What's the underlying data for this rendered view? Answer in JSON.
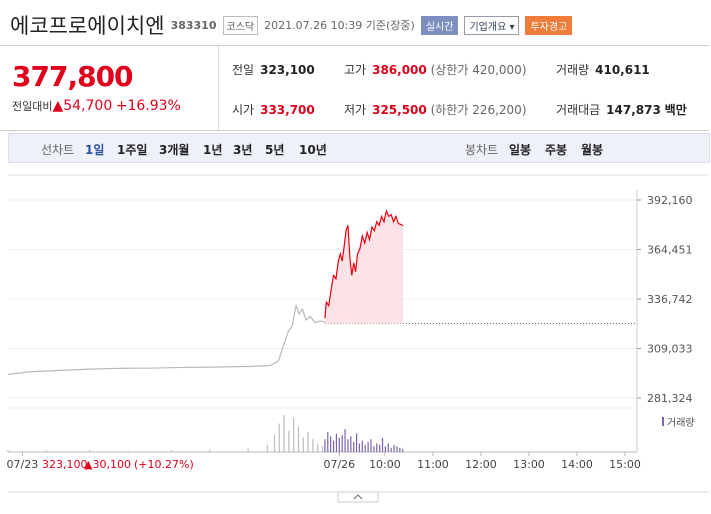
{
  "header": {
    "name": "에코프로에이치엔",
    "code": "383310",
    "market": "코스닥",
    "datetime": "2021.07.26 10:39 기준(장중)",
    "buttons": [
      "실시간",
      "기업개요 ▾",
      "투자경고"
    ]
  },
  "quote": {
    "price": "377,800",
    "change_label": "전일대비",
    "change": "▲54,700",
    "rate": "+16.93%",
    "stats": [
      {
        "label": "전일",
        "value": "323,100"
      },
      {
        "label": "고가",
        "value": "386,000",
        "extra": "(상한가 420,000)"
      },
      {
        "label": "거래량",
        "value": "410,611"
      },
      {
        "label": "시가",
        "value": "333,700"
      },
      {
        "label": "저가",
        "value": "325,500",
        "extra": "(하한가 226,200)"
      },
      {
        "label": "거래대금",
        "value": "147,873",
        "unit": "백만"
      }
    ]
  },
  "tabs": {
    "line": {
      "label": "선차트",
      "items": [
        "1일",
        "1주일",
        "3개월",
        "1년",
        "3년",
        "5년",
        "10년"
      ]
    },
    "candle": {
      "label": "봉차트",
      "items": [
        "일봉",
        "주봉",
        "월봉"
      ]
    }
  },
  "chart_data": {
    "type": "line",
    "ylim": [
      281324,
      392160
    ],
    "yticks": [
      {
        "value": 392160,
        "label": "392,160"
      },
      {
        "value": 364451,
        "label": "364,451"
      },
      {
        "value": 336742,
        "label": "336,742"
      },
      {
        "value": 309033,
        "label": "309,033"
      },
      {
        "value": 281324,
        "label": "281,324"
      }
    ],
    "xlim": [
      0,
      131
    ],
    "xticks": [
      {
        "value": 3,
        "label": "07/23"
      },
      {
        "value": 69,
        "label": "07/26"
      },
      {
        "value": 78.5,
        "label": "10:00"
      },
      {
        "value": 88.5,
        "label": "11:00"
      },
      {
        "value": 98.5,
        "label": "12:00"
      },
      {
        "value": 108.5,
        "label": "13:00"
      },
      {
        "value": 118.5,
        "label": "14:00"
      },
      {
        "value": 128.5,
        "label": "15:00"
      }
    ],
    "base": 323100,
    "series": [
      {
        "color": "#b8b8b8",
        "x": [
          0,
          4.6,
          8.8,
          12.9,
          17.1,
          21.3,
          25.4,
          29.6,
          33.8,
          37.9,
          42.1,
          46.3,
          50.4,
          54.6,
          56.3,
          57.3,
          58.3,
          59.2,
          60,
          60.6,
          61.3,
          62.1,
          62.9,
          64,
          65,
          66
        ],
        "values": [
          294500,
          296000,
          296500,
          297000,
          297500,
          297800,
          298000,
          298000,
          298300,
          298500,
          298600,
          298800,
          299000,
          299500,
          302000,
          310000,
          318000,
          322000,
          333000,
          328500,
          331000,
          325000,
          327000,
          323500,
          324500,
          323800
        ]
      },
      {
        "color": "#e8000f",
        "fill": "#fde3e6",
        "x": [
          66,
          66.3,
          66.8,
          67.3,
          67.8,
          68.3,
          68.8,
          69.2,
          69.6,
          70,
          70.4,
          70.8,
          71.2,
          71.6,
          72,
          72.4,
          72.8,
          73.3,
          73.8,
          74.3,
          74.8,
          75.3,
          75.8,
          76.3,
          76.8,
          77.3,
          77.8,
          78.3,
          78.8,
          79.3,
          79.8,
          80.3,
          80.8,
          81.3,
          81.8,
          82.3
        ],
        "values": [
          326000,
          335000,
          333000,
          342000,
          350000,
          348000,
          358000,
          362000,
          358000,
          366000,
          375000,
          378000,
          360000,
          350000,
          357000,
          352000,
          362000,
          365000,
          372000,
          368000,
          374000,
          370000,
          377000,
          375000,
          380000,
          378000,
          383000,
          380000,
          386000,
          383000,
          384000,
          380000,
          383000,
          379000,
          378500,
          377800
        ]
      }
    ],
    "volume_label": "거래량",
    "volume": [
      {
        "color": "#bdbdbd",
        "x": [
          0,
          8,
          17,
          25,
          34,
          42,
          50,
          54,
          55.5,
          56.5,
          57.5,
          58.5,
          59.5,
          60.5,
          61.5,
          62.5,
          63.5,
          64.5,
          65.5
        ],
        "values": [
          1500,
          1200,
          1400,
          1000,
          1300,
          1800,
          2500,
          5000,
          12000,
          20000,
          26000,
          15000,
          24000,
          18000,
          10000,
          14000,
          9000,
          6000,
          4000
        ]
      },
      {
        "color": "#7a62b0",
        "x": [
          66,
          66.6,
          67.2,
          67.8,
          68.4,
          69,
          69.6,
          70.2,
          70.8,
          71.4,
          72,
          72.6,
          73.2,
          73.8,
          74.4,
          75,
          75.6,
          76.2,
          76.8,
          77.4,
          78,
          78.6,
          79.2,
          79.8,
          80.4,
          81,
          81.6,
          82.2
        ],
        "values": [
          9000,
          14000,
          11000,
          8000,
          13000,
          10000,
          12000,
          16000,
          9000,
          11000,
          7000,
          13000,
          6000,
          8000,
          5000,
          7000,
          9000,
          4000,
          6000,
          5000,
          10000,
          4000,
          6000,
          3000,
          5000,
          4000,
          3000,
          2000
        ]
      }
    ],
    "summary": {
      "close": "323,100",
      "change": "▲30,100",
      "rate": "(+10.27%)"
    }
  }
}
